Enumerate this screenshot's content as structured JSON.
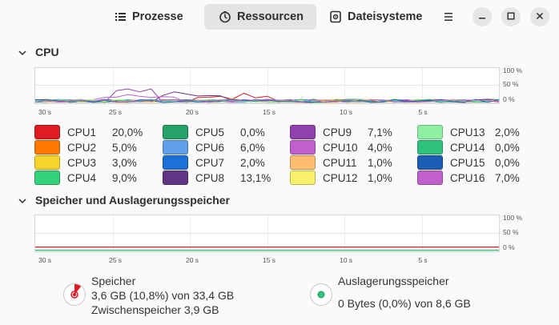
{
  "header": {
    "tabs": [
      {
        "label": "Prozesse",
        "icon": "process-list-icon"
      },
      {
        "label": "Ressourcen",
        "icon": "resources-gauge-icon",
        "active": true
      },
      {
        "label": "Dateisysteme",
        "icon": "disk-icon"
      }
    ],
    "menu_icon": "hamburger-menu-icon",
    "window_buttons": [
      "minimize-icon",
      "maximize-icon",
      "close-icon"
    ]
  },
  "cpu": {
    "title": "CPU",
    "y_labels": [
      "100 %",
      "50 %",
      "0 %"
    ],
    "x_labels": [
      "30 s",
      "25 s",
      "20 s",
      "15 s",
      "10 s",
      "5 s"
    ],
    "cores": [
      {
        "label": "CPU1",
        "value": "20,0%",
        "color": "#e01b24"
      },
      {
        "label": "CPU2",
        "value": "5,0%",
        "color": "#ff7800"
      },
      {
        "label": "CPU3",
        "value": "3,0%",
        "color": "#f6d32d"
      },
      {
        "label": "CPU4",
        "value": "9,0%",
        "color": "#33d17a"
      },
      {
        "label": "CPU5",
        "value": "0,0%",
        "color": "#26a269"
      },
      {
        "label": "CPU6",
        "value": "6,0%",
        "color": "#62a0ea"
      },
      {
        "label": "CPU7",
        "value": "2,0%",
        "color": "#1c71d8"
      },
      {
        "label": "CPU8",
        "value": "13,1%",
        "color": "#613583"
      },
      {
        "label": "CPU9",
        "value": "7,1%",
        "color": "#9141ac"
      },
      {
        "label": "CPU10",
        "value": "4,0%",
        "color": "#c061cb"
      },
      {
        "label": "CPU11",
        "value": "1,0%",
        "color": "#ffbe6f"
      },
      {
        "label": "CPU12",
        "value": "1,0%",
        "color": "#f9f06b"
      },
      {
        "label": "CPU13",
        "value": "2,0%",
        "color": "#8ff0a4"
      },
      {
        "label": "CPU14",
        "value": "0,0%",
        "color": "#2ec27e"
      },
      {
        "label": "CPU15",
        "value": "0,0%",
        "color": "#1a5fb4"
      },
      {
        "label": "CPU16",
        "value": "7,0%",
        "color": "#c061cb"
      }
    ]
  },
  "memory": {
    "title": "Speicher und Auslagerungsspeicher",
    "y_labels": [
      "100 %",
      "50 %",
      "0 %"
    ],
    "x_labels": [
      "30 s",
      "25 s",
      "20 s",
      "15 s",
      "10 s",
      "5 s"
    ],
    "ram": {
      "label": "Speicher",
      "usage": "3,6 GB (10,8%) von 33,4 GB",
      "cache": "Zwischenspeicher 3,9 GB",
      "fraction": 0.108,
      "color": "#e01b24"
    },
    "swap": {
      "label": "Auslagerungsspeicher",
      "usage": "0 Bytes (0,0%) von 8,6 GB",
      "fraction": 0.0,
      "color": "#2ec27e"
    }
  }
}
